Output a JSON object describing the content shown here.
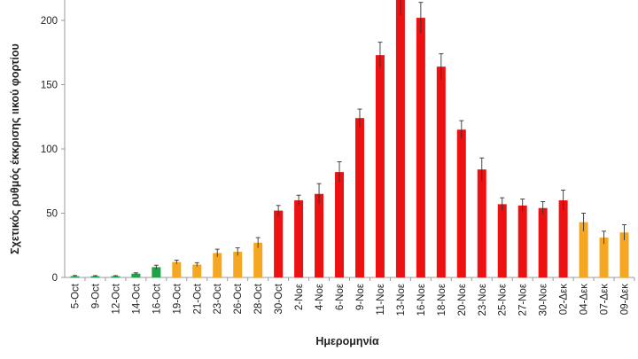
{
  "chart_data": {
    "type": "bar",
    "title": "",
    "xlabel": "Ημερομηνία",
    "ylabel": "Σχετικός ρυθμός έκκρισης ιικού φορτίου",
    "ylim": [
      0,
      215
    ],
    "yticks": [
      0,
      50,
      100,
      150,
      200
    ],
    "grid": false,
    "legend": "none",
    "colors": {
      "green": "#1fa14a",
      "orange": "#f5a623",
      "red": "#ee1111",
      "error": "#333333"
    },
    "categories": [
      "5-Oct",
      "9-Oct",
      "12-Oct",
      "14-Oct",
      "16-Oct",
      "19-Oct",
      "21-Oct",
      "23-Oct",
      "26-Oct",
      "28-Oct",
      "30-Oct",
      "2-Νοε",
      "4-Νοε",
      "6-Νοε",
      "9-Νοε",
      "11-Νοε",
      "13-Νοε",
      "16-Νοε",
      "18-Νοε",
      "20-Νοε",
      "23-Νοε",
      "25-Νοε",
      "27-Νοε",
      "30-Νοε",
      "02-Δεκ",
      "04-Δεκ",
      "07-Δεκ",
      "09-Δεκ"
    ],
    "values": [
      1,
      1,
      1,
      3,
      8,
      12,
      10,
      19,
      20,
      27,
      52,
      60,
      65,
      82,
      124,
      173,
      219,
      202,
      164,
      115,
      84,
      57,
      56,
      54,
      60,
      43,
      31,
      35
    ],
    "errors": [
      0.5,
      0.4,
      0.4,
      0.6,
      1.5,
      1.5,
      1.5,
      3,
      3,
      4,
      4,
      4,
      8,
      8,
      7,
      10,
      15,
      12,
      10,
      7,
      9,
      5,
      5,
      5,
      8,
      7,
      5,
      6
    ],
    "bar_colors": [
      "green",
      "green",
      "green",
      "green",
      "green",
      "orange",
      "orange",
      "orange",
      "orange",
      "orange",
      "red",
      "red",
      "red",
      "red",
      "red",
      "red",
      "red",
      "red",
      "red",
      "red",
      "red",
      "red",
      "red",
      "red",
      "red",
      "orange",
      "orange",
      "orange"
    ]
  }
}
